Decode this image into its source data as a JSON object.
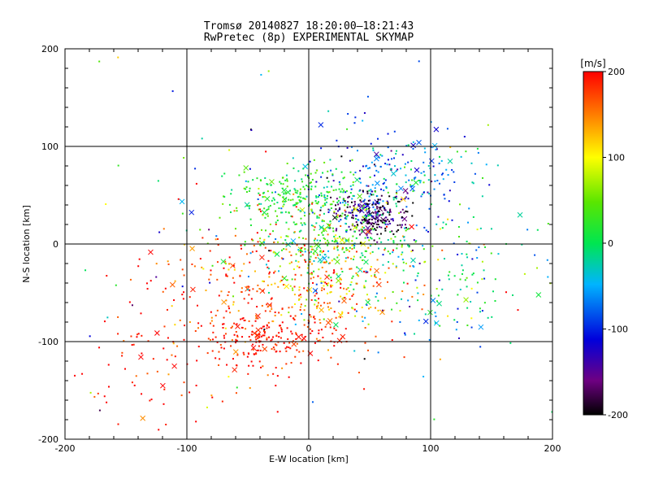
{
  "title_line1": "Tromsø 20140827 18:20:00–18:21:43",
  "title_line2": "RwPretec (8p) EXPERIMENTAL SKYMAP",
  "colorbar": {
    "label": "[m/s]",
    "ticks": [
      "200",
      "100",
      "0",
      "-100",
      "-200"
    ],
    "range": [
      -200,
      200
    ],
    "colormap": "rainbow-black-to-red"
  },
  "chart_data": {
    "type": "scatter",
    "title": "Tromsø 20140827 18:20:00–18:21:43",
    "subtitle": "RwPretec (8p) EXPERIMENTAL SKYMAP",
    "xlabel": "E-W location [km]",
    "ylabel": "N-S location [km]",
    "xlim": [
      -200,
      200
    ],
    "ylim": [
      -200,
      200
    ],
    "x_ticks": [
      "-200",
      "-100",
      "0",
      "100",
      "200"
    ],
    "y_ticks": [
      "-200",
      "-100",
      "0",
      "100",
      "200"
    ],
    "grid": true,
    "color_encodes": "Doppler velocity [m/s]",
    "clusters": [
      {
        "region": "center-northeast",
        "x_center": 50,
        "y_center": 30,
        "spread": [
          15,
          12
        ],
        "velocity": -170,
        "velocity_sd": 40,
        "approx_points": 250
      },
      {
        "region": "north-east",
        "x_center": 70,
        "y_center": 70,
        "spread": [
          35,
          25
        ],
        "velocity": -70,
        "velocity_sd": 40,
        "approx_points": 220
      },
      {
        "region": "north-west",
        "x_center": -10,
        "y_center": 50,
        "spread": [
          30,
          15
        ],
        "velocity": 20,
        "velocity_sd": 25,
        "approx_points": 220
      },
      {
        "region": "center",
        "x_center": 20,
        "y_center": 5,
        "spread": [
          40,
          25
        ],
        "velocity": 25,
        "velocity_sd": 40,
        "approx_points": 300
      },
      {
        "region": "south-center",
        "x_center": -25,
        "y_center": -50,
        "spread": [
          45,
          35
        ],
        "velocity": 175,
        "velocity_sd": 30,
        "approx_points": 320
      },
      {
        "region": "south-west",
        "x_center": -40,
        "y_center": -100,
        "spread": [
          25,
          15
        ],
        "velocity": 195,
        "velocity_sd": 15,
        "approx_points": 160
      },
      {
        "region": "east",
        "x_center": 110,
        "y_center": -40,
        "spread": [
          40,
          35
        ],
        "velocity": -20,
        "velocity_sd": 70,
        "approx_points": 160
      },
      {
        "region": "center-south",
        "x_center": 20,
        "y_center": -40,
        "spread": [
          25,
          25
        ],
        "velocity": 120,
        "velocity_sd": 40,
        "approx_points": 120
      },
      {
        "region": "far-south-west",
        "x_center": -130,
        "y_center": -120,
        "spread": [
          45,
          50
        ],
        "velocity": 190,
        "velocity_sd": 30,
        "approx_points": 90
      },
      {
        "region": "outer scatter",
        "x_center": 0,
        "y_center": 0,
        "spread": [
          110,
          110
        ],
        "velocity": 50,
        "velocity_sd": 120,
        "approx_points": 140
      }
    ]
  }
}
